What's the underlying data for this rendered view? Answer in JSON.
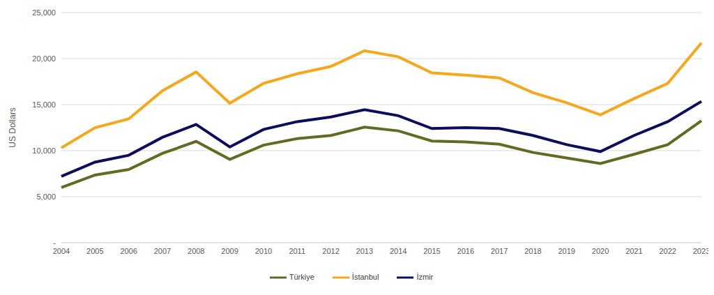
{
  "chart_data": {
    "type": "line",
    "y_label": "US Dollars",
    "x": [
      "2004",
      "2005",
      "2006",
      "2007",
      "2008",
      "2009",
      "2010",
      "2011",
      "2012",
      "2013",
      "2014",
      "2015",
      "2016",
      "2017",
      "2018",
      "2019",
      "2020",
      "2021",
      "2022",
      "2023"
    ],
    "series": [
      {
        "name": "Türkiye",
        "color": "#646a21",
        "values": [
          6000,
          7350,
          7950,
          9700,
          11000,
          9050,
          10600,
          11300,
          11650,
          12550,
          12150,
          11050,
          10950,
          10700,
          9800,
          9200,
          8600,
          9600,
          10650,
          13250
        ]
      },
      {
        "name": "İstanbul",
        "color": "#f5a81c",
        "values": [
          10300,
          12500,
          13450,
          16500,
          18550,
          15150,
          17300,
          18350,
          19150,
          20850,
          20200,
          18450,
          18200,
          17900,
          16300,
          15200,
          13900,
          15650,
          17300,
          21700
        ]
      },
      {
        "name": "İzmir",
        "color": "#0d0d5e",
        "values": [
          7200,
          8750,
          9500,
          11450,
          12850,
          10400,
          12300,
          13150,
          13650,
          14450,
          13800,
          12400,
          12500,
          12400,
          11650,
          10650,
          9900,
          11650,
          13150,
          15350
        ]
      }
    ],
    "ylim": [
      0,
      25000
    ],
    "yticks": [
      {
        "value": 0,
        "label": "-"
      },
      {
        "value": 5000,
        "label": "5,000"
      },
      {
        "value": 10000,
        "label": "10,000"
      },
      {
        "value": 15000,
        "label": "15,000"
      },
      {
        "value": 20000,
        "label": "20,000"
      },
      {
        "value": 25000,
        "label": "25,000"
      }
    ],
    "grid": true,
    "legend": "bottom"
  }
}
